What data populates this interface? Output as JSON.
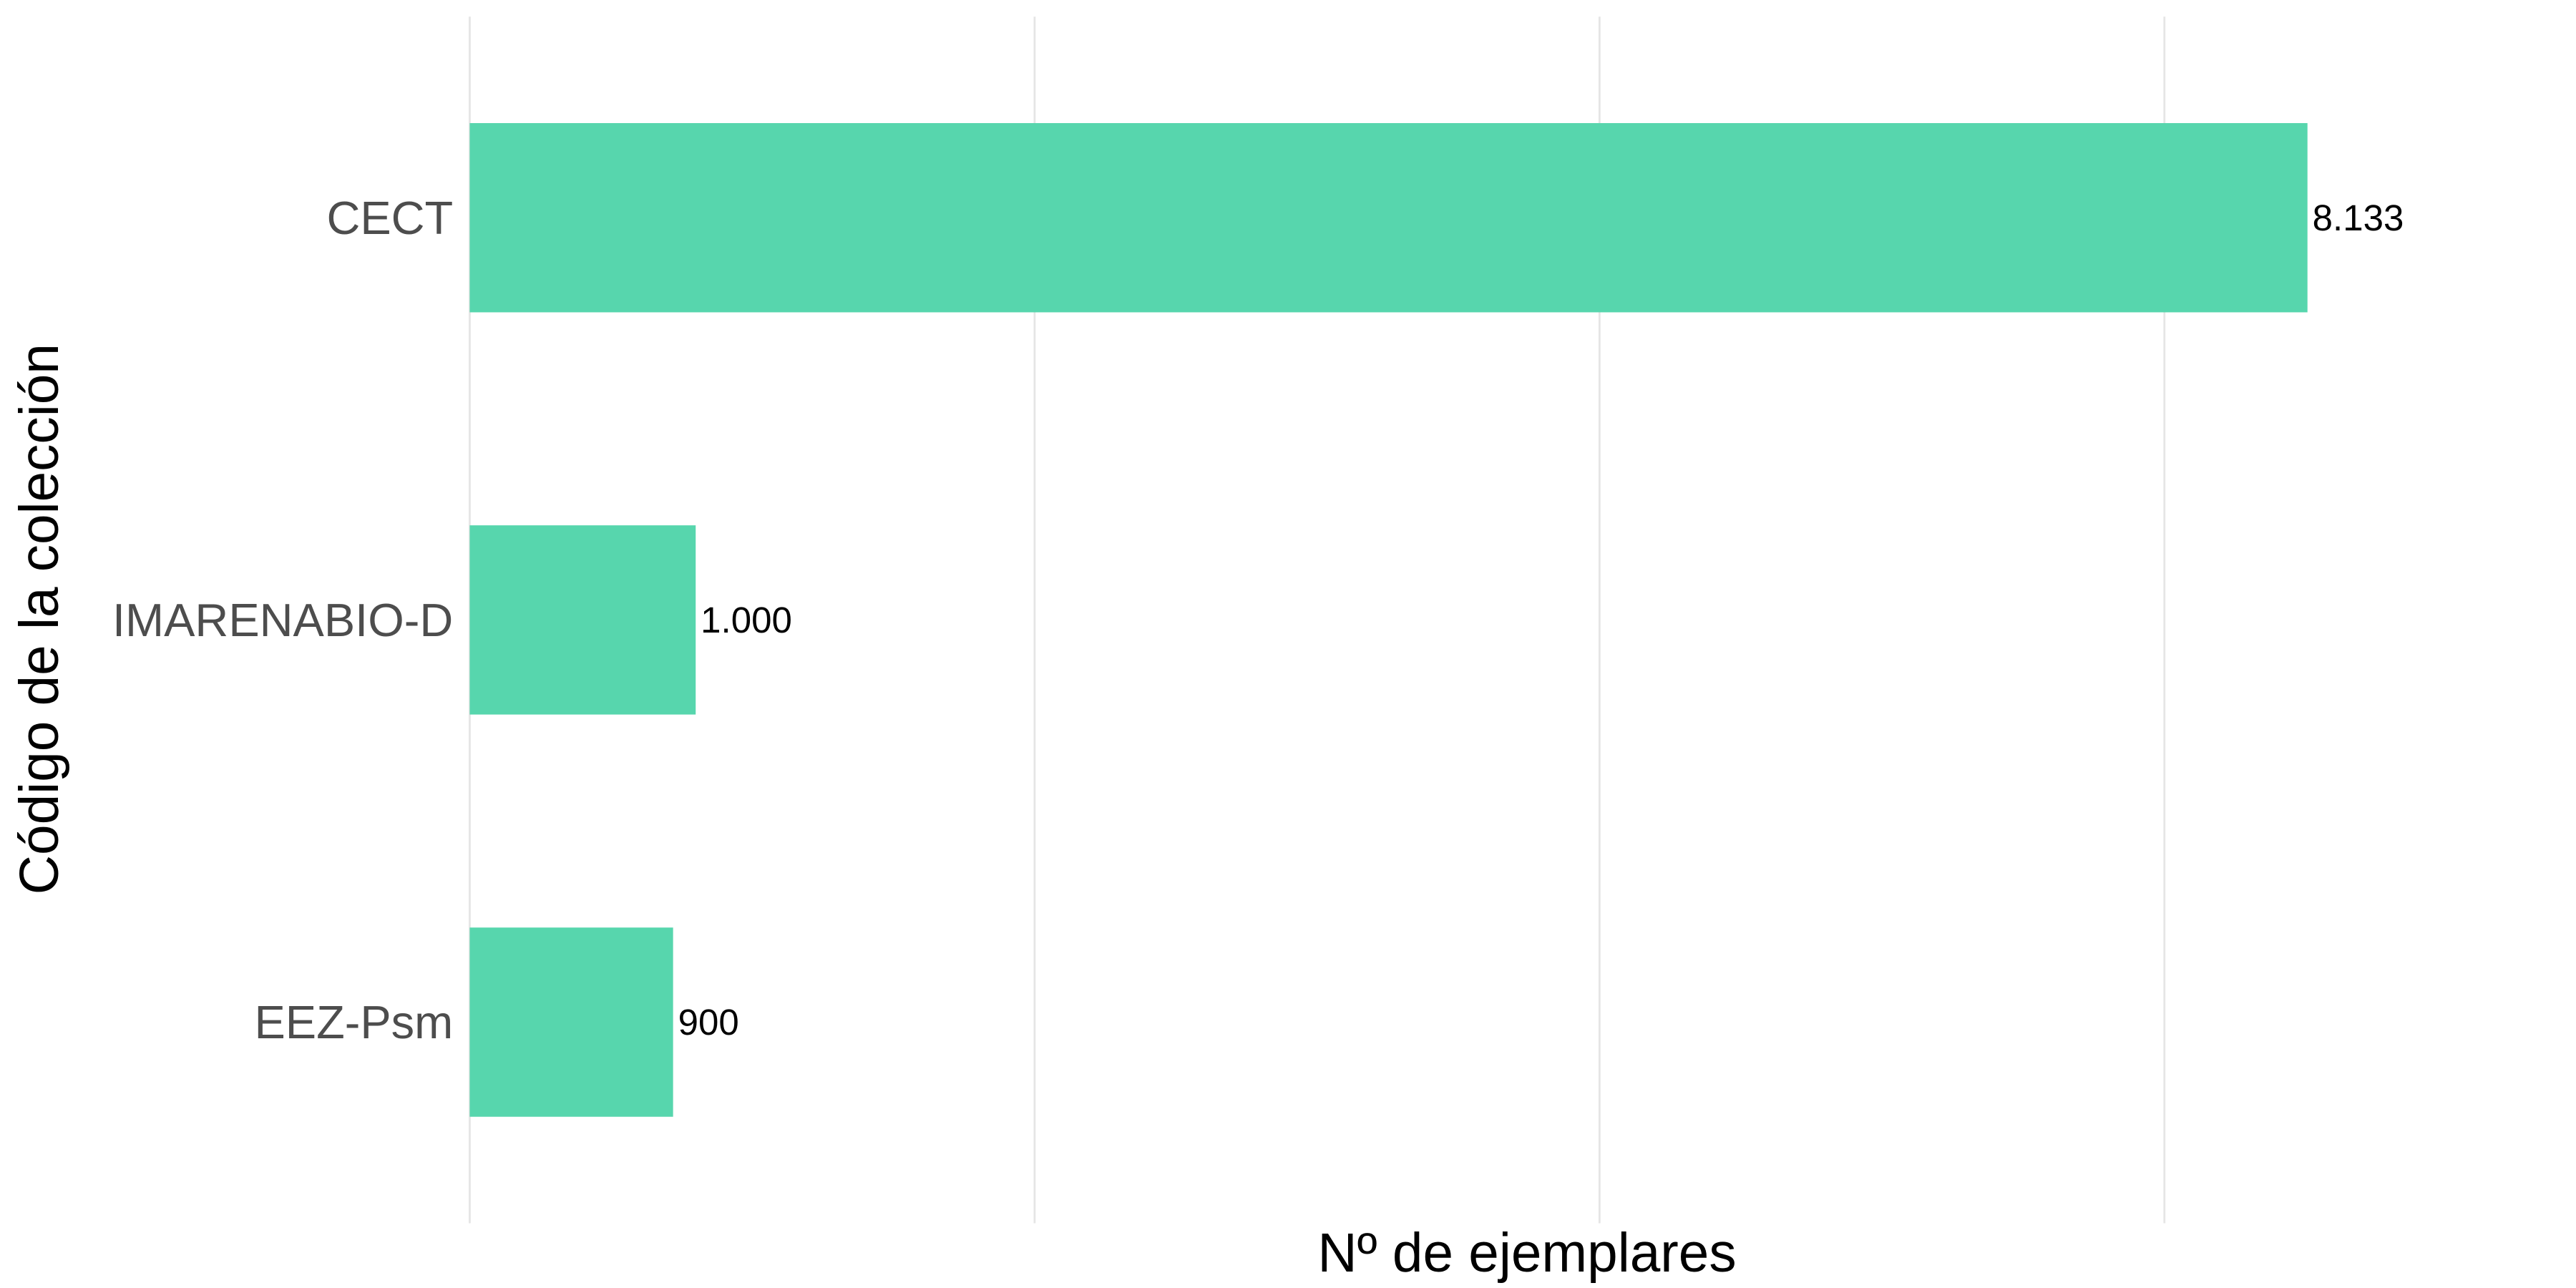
{
  "chart_data": {
    "type": "bar",
    "orientation": "horizontal",
    "x_label": "Nº de ejemplares",
    "y_label": "Código de la colección",
    "categories": [
      "CECT",
      "IMARENABIO-D",
      "EEZ-Psm"
    ],
    "values": [
      8133,
      1000,
      900
    ],
    "value_labels": [
      "8.133",
      "1.000",
      "900"
    ],
    "color": "#57d6ad",
    "xlim": [
      0,
      9270
    ],
    "xticks": [
      0,
      2500,
      5000,
      7500
    ],
    "grid": true
  }
}
